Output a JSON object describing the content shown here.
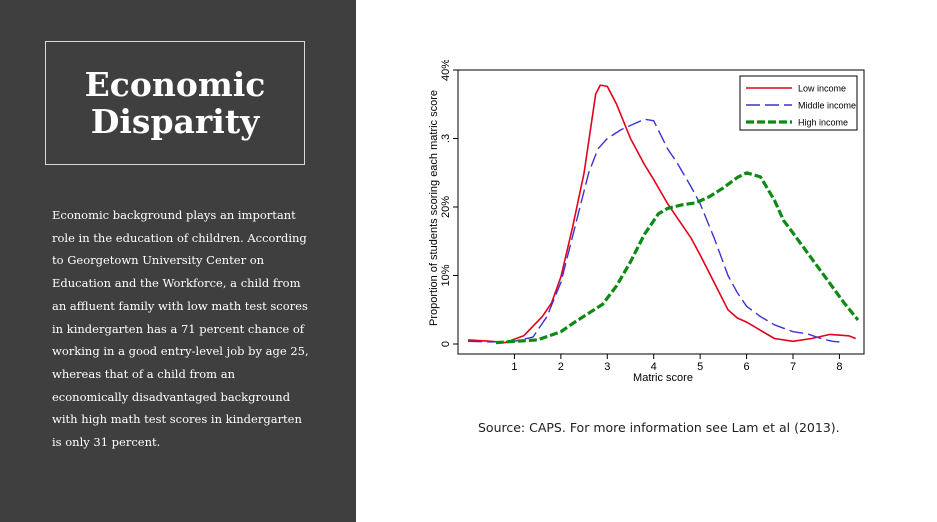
{
  "slide": {
    "title_line1": "Economic",
    "title_line2": "Disparity",
    "body": "Economic background plays an important role in the education of children. According to Georgetown University Center on Education and the Workforce, a child from an affluent family with low math test scores in kindergarten has a 71 percent chance of working in a good entry-level job by age 25, whereas that of a child from an economically disadvantaged background with high math test scores in kindergarten is only 31 percent.",
    "source": "Source: CAPS. For more information see Lam et al (2013).",
    "panel_color": "#3f3f3f"
  },
  "chart_data": {
    "type": "line",
    "xlabel": "Matric score",
    "ylabel": "Proportion of students scoring each matric score",
    "xlim": [
      0,
      8.4
    ],
    "ylim": [
      0,
      0.4
    ],
    "xticks": [
      {
        "value": 1,
        "label": "1"
      },
      {
        "value": 2,
        "label": "2"
      },
      {
        "value": 3,
        "label": "3"
      },
      {
        "value": 4,
        "label": "4"
      },
      {
        "value": 5,
        "label": "5"
      },
      {
        "value": 6,
        "label": "6"
      },
      {
        "value": 7,
        "label": "7"
      },
      {
        "value": 8,
        "label": "8"
      }
    ],
    "yticks": [
      {
        "value": 0,
        "label": "0"
      },
      {
        "value": 0.1,
        "label": "10%"
      },
      {
        "value": 0.2,
        "label": "20%"
      },
      {
        "value": 0.3,
        "label": ".3"
      },
      {
        "value": 0.4,
        "label": "40%"
      }
    ],
    "legend_position": "top-right",
    "series": [
      {
        "name": "Low income",
        "color": "#e3001b",
        "dash": "solid",
        "points": [
          [
            0,
            0.006
          ],
          [
            0.5,
            0.004
          ],
          [
            0.8,
            0.002
          ],
          [
            1.2,
            0.012
          ],
          [
            1.6,
            0.04
          ],
          [
            1.8,
            0.06
          ],
          [
            2,
            0.098
          ],
          [
            2.25,
            0.17
          ],
          [
            2.5,
            0.25
          ],
          [
            2.75,
            0.365
          ],
          [
            2.85,
            0.378
          ],
          [
            3,
            0.376
          ],
          [
            3.2,
            0.35
          ],
          [
            3.5,
            0.3
          ],
          [
            3.8,
            0.262
          ],
          [
            4,
            0.24
          ],
          [
            4.3,
            0.205
          ],
          [
            4.5,
            0.185
          ],
          [
            4.8,
            0.155
          ],
          [
            5,
            0.13
          ],
          [
            5.3,
            0.09
          ],
          [
            5.6,
            0.05
          ],
          [
            5.8,
            0.038
          ],
          [
            6,
            0.032
          ],
          [
            6.3,
            0.02
          ],
          [
            6.6,
            0.008
          ],
          [
            7,
            0.004
          ],
          [
            7.4,
            0.008
          ],
          [
            7.8,
            0.014
          ],
          [
            8.2,
            0.012
          ],
          [
            8.35,
            0.008
          ]
        ]
      },
      {
        "name": "Middle income",
        "color": "#3a33d6",
        "dash": "longdash",
        "points": [
          [
            0,
            0.004
          ],
          [
            0.5,
            0.003
          ],
          [
            1,
            0.004
          ],
          [
            1.4,
            0.01
          ],
          [
            1.7,
            0.04
          ],
          [
            2,
            0.09
          ],
          [
            2.3,
            0.17
          ],
          [
            2.6,
            0.25
          ],
          [
            2.8,
            0.285
          ],
          [
            3,
            0.3
          ],
          [
            3.3,
            0.313
          ],
          [
            3.6,
            0.322
          ],
          [
            3.8,
            0.328
          ],
          [
            4,
            0.326
          ],
          [
            4.3,
            0.285
          ],
          [
            4.5,
            0.265
          ],
          [
            4.8,
            0.23
          ],
          [
            5,
            0.205
          ],
          [
            5.3,
            0.155
          ],
          [
            5.6,
            0.1
          ],
          [
            5.8,
            0.075
          ],
          [
            6,
            0.055
          ],
          [
            6.3,
            0.04
          ],
          [
            6.6,
            0.028
          ],
          [
            7,
            0.018
          ],
          [
            7.3,
            0.015
          ],
          [
            7.6,
            0.008
          ],
          [
            7.85,
            0.004
          ],
          [
            8,
            0.003
          ]
        ]
      },
      {
        "name": "High income",
        "color": "#0d8a12",
        "dash": "dash",
        "points": [
          [
            0.6,
            0.002
          ],
          [
            1,
            0.004
          ],
          [
            1.5,
            0.006
          ],
          [
            2,
            0.018
          ],
          [
            2.3,
            0.032
          ],
          [
            2.6,
            0.045
          ],
          [
            2.9,
            0.058
          ],
          [
            3.2,
            0.085
          ],
          [
            3.5,
            0.12
          ],
          [
            3.8,
            0.16
          ],
          [
            4.1,
            0.19
          ],
          [
            4.3,
            0.198
          ],
          [
            4.6,
            0.203
          ],
          [
            4.9,
            0.206
          ],
          [
            5.2,
            0.215
          ],
          [
            5.5,
            0.228
          ],
          [
            5.8,
            0.243
          ],
          [
            6,
            0.25
          ],
          [
            6.3,
            0.244
          ],
          [
            6.6,
            0.21
          ],
          [
            6.8,
            0.18
          ],
          [
            7,
            0.162
          ],
          [
            7.4,
            0.125
          ],
          [
            7.8,
            0.088
          ],
          [
            8.1,
            0.06
          ],
          [
            8.4,
            0.035
          ]
        ]
      }
    ]
  }
}
